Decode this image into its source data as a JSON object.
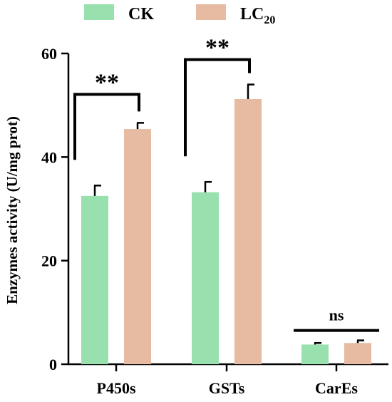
{
  "chart_data": {
    "type": "bar",
    "categories": [
      "P450s",
      "GSTs",
      "CarEs"
    ],
    "series": [
      {
        "name": "CK",
        "color": "#98E0AD",
        "values": [
          32.5,
          33.2,
          3.8
        ],
        "errors": [
          2.0,
          2.0,
          0.3
        ]
      },
      {
        "name": "LC",
        "name_subscript": "20",
        "color": "#E6BBA2",
        "values": [
          45.4,
          51.2,
          4.1
        ],
        "errors": [
          1.2,
          2.8,
          0.5
        ]
      }
    ],
    "ylabel": "Enzymes activity (U/mg prot)",
    "ylim": [
      0,
      60
    ],
    "yticks": [
      0,
      20,
      40,
      60
    ],
    "legend_position": "top",
    "significance": [
      {
        "category": "P450s",
        "label": "**",
        "bracket": "full"
      },
      {
        "category": "GSTs",
        "label": "**",
        "bracket": "full"
      },
      {
        "category": "CarEs",
        "label": "ns",
        "bracket": "line"
      }
    ]
  }
}
